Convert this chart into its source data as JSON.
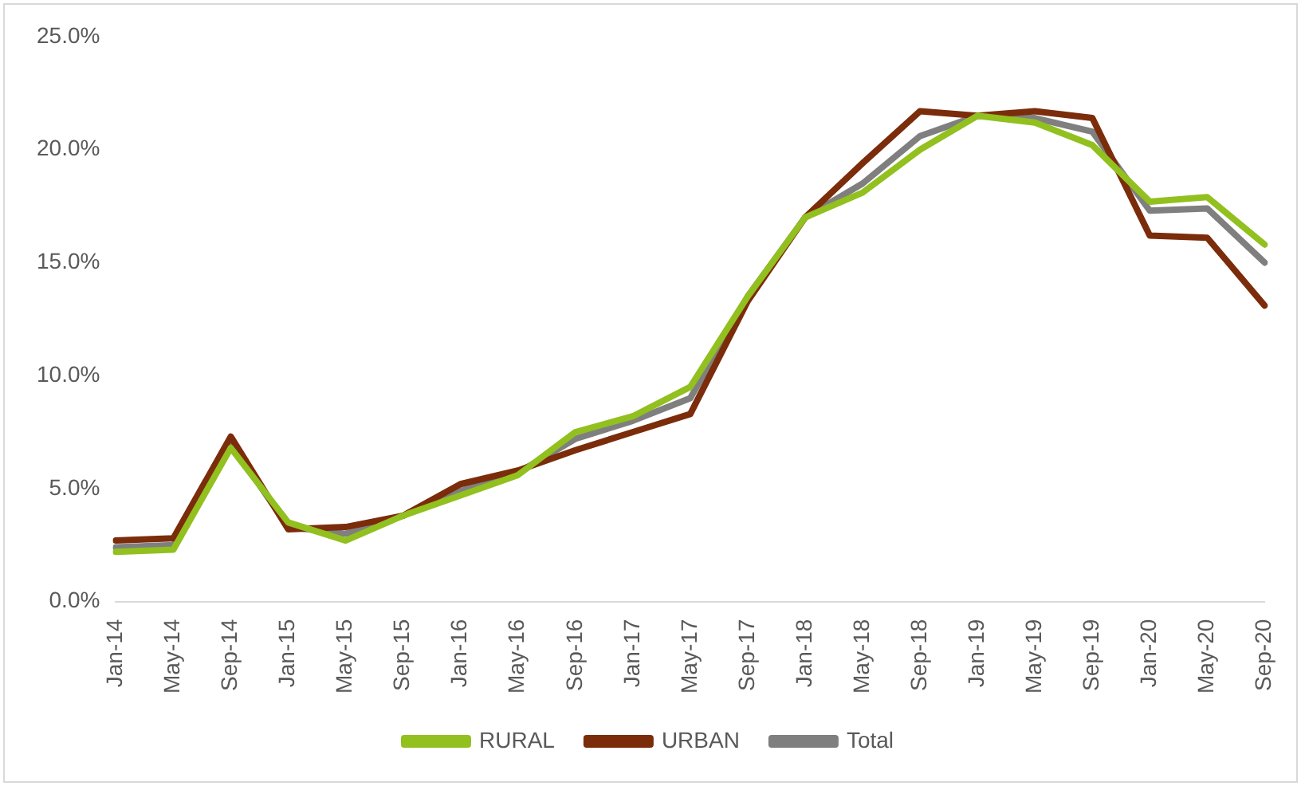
{
  "chart_data": {
    "type": "line",
    "categories": [
      "Jan-14",
      "May-14",
      "Sep-14",
      "Jan-15",
      "May-15",
      "Sep-15",
      "Jan-16",
      "May-16",
      "Sep-16",
      "Jan-17",
      "May-17",
      "Sep-17",
      "Jan-18",
      "May-18",
      "Sep-18",
      "Jan-19",
      "May-19",
      "Sep-19",
      "Jan-20",
      "May-20",
      "Sep-20"
    ],
    "series": [
      {
        "name": "RURAL",
        "color": "#92c01f",
        "values": [
          2.2,
          2.3,
          6.8,
          3.5,
          2.7,
          3.8,
          4.7,
          5.6,
          7.5,
          8.2,
          9.5,
          13.5,
          17.0,
          18.1,
          20.0,
          21.5,
          21.2,
          20.2,
          17.7,
          17.9,
          15.8
        ]
      },
      {
        "name": "URBAN",
        "color": "#7b2c0a",
        "values": [
          2.7,
          2.8,
          7.3,
          3.2,
          3.3,
          3.8,
          5.2,
          5.8,
          6.7,
          7.5,
          8.3,
          13.3,
          17.0,
          19.4,
          21.7,
          21.5,
          21.7,
          21.4,
          16.2,
          16.1,
          13.1
        ]
      },
      {
        "name": "Total",
        "color": "#7f7f7f",
        "values": [
          2.4,
          2.5,
          7.0,
          3.3,
          3.0,
          3.8,
          4.9,
          5.7,
          7.2,
          8.0,
          9.0,
          13.5,
          17.0,
          18.5,
          20.6,
          21.5,
          21.4,
          20.8,
          17.3,
          17.4,
          15.0
        ]
      }
    ],
    "ylim": [
      0,
      25
    ],
    "yticks": [
      {
        "value": 0,
        "label": "0.0%"
      },
      {
        "value": 5,
        "label": "5.0%"
      },
      {
        "value": 10,
        "label": "10.0%"
      },
      {
        "value": 15,
        "label": "15.0%"
      },
      {
        "value": 20,
        "label": "20.0%"
      },
      {
        "value": 25,
        "label": "25.0%"
      }
    ],
    "grid": false,
    "legend": "bottom",
    "marker": "none",
    "line_style": "solid"
  }
}
